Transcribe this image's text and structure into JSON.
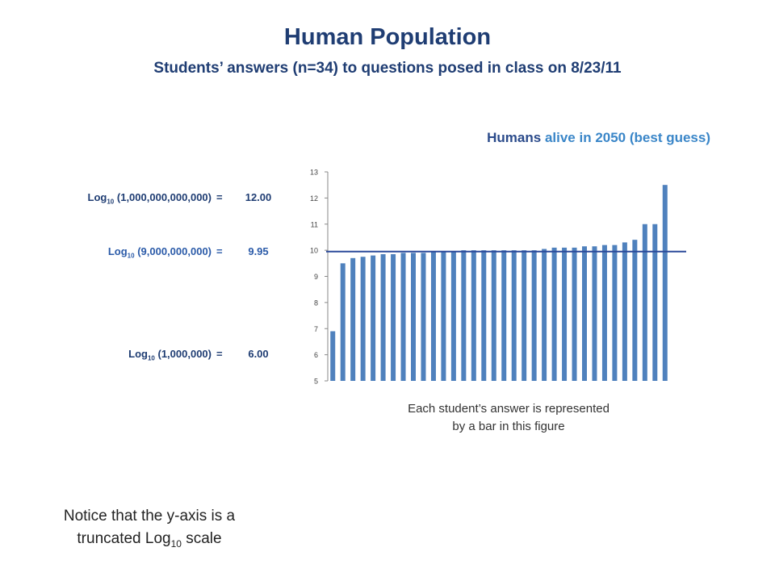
{
  "title": "Human Population",
  "subtitle": "Students’ answers (n=34) to questions posed in class on 8/23/11",
  "annotations": {
    "rows": [
      {
        "log": "Log",
        "base": "10",
        "arg": "(1,000,000,000,000)",
        "eq": "=",
        "value": "12.00",
        "color": "#1f3d73"
      },
      {
        "log": "Log",
        "base": "10",
        "arg": "(9,000,000,000)",
        "eq": "=",
        "value": "9.95",
        "color": "#2a5aa8"
      },
      {
        "log": "Log",
        "base": "10",
        "arg": "(1,000,000)",
        "eq": "=",
        "value": "6.00",
        "color": "#1f3d73"
      }
    ],
    "caption_line1": "Each student’s answer is represented",
    "caption_line2": "by a bar in this figure",
    "note_line1": "Notice that the y-axis is a",
    "note_line2_pre": "truncated Log",
    "note_line2_sub": "10",
    "note_line2_post": " scale"
  },
  "chart_data": {
    "type": "bar",
    "title_part1": "Humans",
    "title_part2": "alive in 2050 (best guess)",
    "xlabel": "",
    "ylabel": "",
    "ylim": [
      5,
      13
    ],
    "yticks": [
      5,
      6,
      7,
      8,
      9,
      10,
      11,
      12,
      13
    ],
    "reference_line": 9.95,
    "values": [
      6.9,
      9.5,
      9.7,
      9.75,
      9.8,
      9.85,
      9.85,
      9.9,
      9.9,
      9.9,
      9.95,
      9.95,
      9.95,
      10.0,
      10.0,
      10.0,
      10.0,
      10.0,
      10.0,
      10.0,
      10.0,
      10.05,
      10.1,
      10.1,
      10.1,
      10.15,
      10.15,
      10.2,
      10.2,
      10.3,
      10.4,
      11.0,
      11.0,
      12.5
    ],
    "colors": {
      "bar": "#4f81bd",
      "reference_line": "#2b4a9a",
      "axis": "#888888"
    }
  }
}
